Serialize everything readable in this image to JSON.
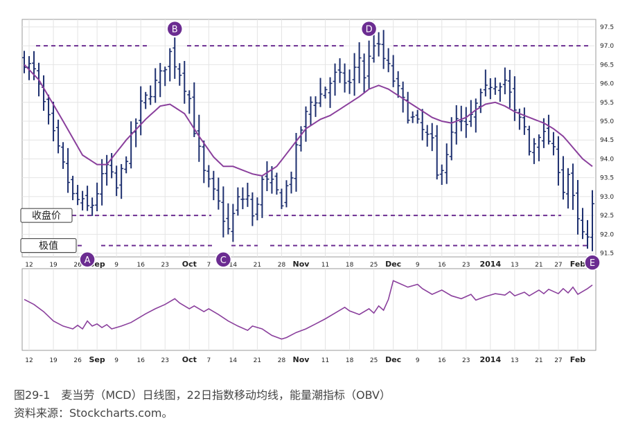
{
  "caption": {
    "line1": "图29-1　麦当劳（MCD）日线图，22日指数移动均线，能量潮指标（OBV）",
    "line2": "资料来源：Stockcharts.com。"
  },
  "colors": {
    "bars": "#1c2e6e",
    "ema": "#8a3f9c",
    "dashed": "#6b2c91",
    "marker": "#6b2c91",
    "obv": "#8a3f9c",
    "grid": "#e4e4e4"
  },
  "chart_data": {
    "type": "ohlc_bar_with_indicator",
    "price_axis": {
      "ylim": [
        91.4,
        97.7
      ],
      "ticks": [
        "91.5",
        "92.0",
        "92.5",
        "93.0",
        "93.5",
        "94.0",
        "94.5",
        "95.0",
        "95.5",
        "96.0",
        "96.5",
        "97.0",
        "97.5"
      ]
    },
    "x_tick_labels": [
      {
        "label": "12",
        "idx": 1,
        "bold": false
      },
      {
        "label": "19",
        "idx": 6,
        "bold": false
      },
      {
        "label": "26",
        "idx": 11,
        "bold": false
      },
      {
        "label": "Sep",
        "idx": 15,
        "bold": true
      },
      {
        "label": "9",
        "idx": 19,
        "bold": false
      },
      {
        "label": "16",
        "idx": 24,
        "bold": false
      },
      {
        "label": "23",
        "idx": 29,
        "bold": false
      },
      {
        "label": "Oct",
        "idx": 34,
        "bold": true
      },
      {
        "label": "7",
        "idx": 38,
        "bold": false
      },
      {
        "label": "14",
        "idx": 43,
        "bold": false
      },
      {
        "label": "21",
        "idx": 48,
        "bold": false
      },
      {
        "label": "28",
        "idx": 53,
        "bold": false
      },
      {
        "label": "Nov",
        "idx": 57,
        "bold": true
      },
      {
        "label": "11",
        "idx": 62,
        "bold": false
      },
      {
        "label": "18",
        "idx": 67,
        "bold": false
      },
      {
        "label": "25",
        "idx": 72,
        "bold": false
      },
      {
        "label": "Dec",
        "idx": 76,
        "bold": true
      },
      {
        "label": "9",
        "idx": 81,
        "bold": false
      },
      {
        "label": "16",
        "idx": 86,
        "bold": false
      },
      {
        "label": "23",
        "idx": 91,
        "bold": false
      },
      {
        "label": "2014",
        "idx": 96,
        "bold": true
      },
      {
        "label": "13",
        "idx": 101,
        "bold": false
      },
      {
        "label": "21",
        "idx": 106,
        "bold": false
      },
      {
        "label": "27",
        "idx": 110,
        "bold": false
      },
      {
        "label": "Feb",
        "idx": 114,
        "bold": true
      }
    ],
    "close_anchors": [
      [
        0,
        96.6
      ],
      [
        2,
        96.3
      ],
      [
        6,
        94.6
      ],
      [
        10,
        93.0
      ],
      [
        13,
        92.7
      ],
      [
        14,
        92.8
      ],
      [
        17,
        93.8
      ],
      [
        19,
        93.2
      ],
      [
        24,
        95.4
      ],
      [
        28,
        96.2
      ],
      [
        30,
        96.8
      ],
      [
        32,
        96.3
      ],
      [
        34,
        95.6
      ],
      [
        35,
        94.8
      ],
      [
        37,
        93.6
      ],
      [
        40,
        92.8
      ],
      [
        42,
        92.1
      ],
      [
        44,
        92.9
      ],
      [
        46,
        93.0
      ],
      [
        47,
        92.4
      ],
      [
        49,
        93.4
      ],
      [
        51,
        93.3
      ],
      [
        53,
        92.9
      ],
      [
        55,
        93.6
      ],
      [
        57,
        94.8
      ],
      [
        59,
        95.5
      ],
      [
        61,
        95.7
      ],
      [
        64,
        96.2
      ],
      [
        67,
        96.0
      ],
      [
        69,
        96.7
      ],
      [
        70,
        96.2
      ],
      [
        72,
        97.1
      ],
      [
        73,
        96.9
      ],
      [
        75,
        96.4
      ],
      [
        77,
        95.8
      ],
      [
        79,
        95.2
      ],
      [
        81,
        94.9
      ],
      [
        84,
        94.4
      ],
      [
        85,
        93.5
      ],
      [
        87,
        94.2
      ],
      [
        89,
        95.0
      ],
      [
        91,
        94.8
      ],
      [
        93,
        95.4
      ],
      [
        96,
        96.0
      ],
      [
        99,
        96.1
      ],
      [
        100,
        95.7
      ],
      [
        101,
        95.2
      ],
      [
        103,
        94.8
      ],
      [
        104,
        94.2
      ],
      [
        106,
        94.7
      ],
      [
        108,
        94.5
      ],
      [
        110,
        93.8
      ],
      [
        111,
        93.2
      ],
      [
        112,
        93.6
      ],
      [
        113,
        92.9
      ],
      [
        114,
        92.3
      ],
      [
        115,
        92.0
      ],
      [
        116,
        91.8
      ],
      [
        117,
        92.7
      ]
    ],
    "ema_anchors": [
      [
        0,
        96.5
      ],
      [
        3,
        96.1
      ],
      [
        8,
        95.0
      ],
      [
        12,
        94.1
      ],
      [
        15,
        93.85
      ],
      [
        17,
        93.85
      ],
      [
        21,
        94.5
      ],
      [
        25,
        95.05
      ],
      [
        28,
        95.4
      ],
      [
        30,
        95.45
      ],
      [
        33,
        95.2
      ],
      [
        36,
        94.6
      ],
      [
        39,
        94.05
      ],
      [
        41,
        93.8
      ],
      [
        43,
        93.8
      ],
      [
        45,
        93.7
      ],
      [
        47,
        93.6
      ],
      [
        49,
        93.55
      ],
      [
        52,
        93.8
      ],
      [
        55,
        94.3
      ],
      [
        58,
        94.8
      ],
      [
        61,
        95.05
      ],
      [
        63,
        95.15
      ],
      [
        66,
        95.4
      ],
      [
        69,
        95.65
      ],
      [
        71,
        95.85
      ],
      [
        73,
        95.95
      ],
      [
        75,
        95.85
      ],
      [
        78,
        95.6
      ],
      [
        81,
        95.35
      ],
      [
        84,
        95.1
      ],
      [
        86,
        95.0
      ],
      [
        88,
        94.95
      ],
      [
        91,
        95.1
      ],
      [
        93,
        95.3
      ],
      [
        95,
        95.45
      ],
      [
        97,
        95.5
      ],
      [
        99,
        95.4
      ],
      [
        101,
        95.25
      ],
      [
        103,
        95.15
      ],
      [
        105,
        95.05
      ],
      [
        107,
        94.95
      ],
      [
        109,
        94.8
      ],
      [
        111,
        94.6
      ],
      [
        113,
        94.3
      ],
      [
        115,
        94.0
      ],
      [
        117,
        93.8
      ]
    ],
    "levels": [
      {
        "name": "extreme_high",
        "value": 97.0
      },
      {
        "name": "close_level",
        "value": 92.5
      },
      {
        "name": "extreme_low",
        "value": 91.7
      }
    ],
    "markers": [
      {
        "label": "A",
        "idx": 13,
        "price": 91.33
      },
      {
        "label": "B",
        "idx": 31,
        "price": 97.45
      },
      {
        "label": "C",
        "idx": 41,
        "price": 91.33
      },
      {
        "label": "D",
        "idx": 71,
        "price": 97.45
      },
      {
        "label": "E",
        "idx": 117,
        "price": 91.25
      }
    ],
    "boxes": [
      {
        "label": "收盘价",
        "value": 92.5
      },
      {
        "label": "极值",
        "value": 91.7
      }
    ],
    "obv": {
      "range": [
        0,
        100
      ],
      "anchors": [
        [
          0,
          65
        ],
        [
          2,
          58
        ],
        [
          4,
          48
        ],
        [
          6,
          35
        ],
        [
          8,
          28
        ],
        [
          10,
          24
        ],
        [
          11,
          29
        ],
        [
          12,
          24
        ],
        [
          13,
          35
        ],
        [
          14,
          28
        ],
        [
          15,
          31
        ],
        [
          16,
          26
        ],
        [
          17,
          30
        ],
        [
          18,
          24
        ],
        [
          20,
          28
        ],
        [
          22,
          33
        ],
        [
          25,
          45
        ],
        [
          27,
          52
        ],
        [
          29,
          58
        ],
        [
          31,
          66
        ],
        [
          32,
          60
        ],
        [
          34,
          52
        ],
        [
          35,
          56
        ],
        [
          37,
          48
        ],
        [
          38,
          52
        ],
        [
          40,
          44
        ],
        [
          42,
          35
        ],
        [
          44,
          28
        ],
        [
          46,
          22
        ],
        [
          47,
          28
        ],
        [
          49,
          24
        ],
        [
          51,
          15
        ],
        [
          53,
          10
        ],
        [
          54,
          12
        ],
        [
          56,
          19
        ],
        [
          58,
          24
        ],
        [
          60,
          31
        ],
        [
          62,
          38
        ],
        [
          64,
          46
        ],
        [
          66,
          54
        ],
        [
          67,
          49
        ],
        [
          69,
          44
        ],
        [
          71,
          52
        ],
        [
          72,
          46
        ],
        [
          73,
          56
        ],
        [
          74,
          50
        ],
        [
          75,
          65
        ],
        [
          76,
          91
        ],
        [
          77,
          88
        ],
        [
          79,
          82
        ],
        [
          81,
          86
        ],
        [
          82,
          80
        ],
        [
          84,
          72
        ],
        [
          86,
          78
        ],
        [
          88,
          70
        ],
        [
          90,
          66
        ],
        [
          92,
          72
        ],
        [
          93,
          64
        ],
        [
          95,
          69
        ],
        [
          97,
          73
        ],
        [
          99,
          71
        ],
        [
          100,
          76
        ],
        [
          101,
          70
        ],
        [
          103,
          75
        ],
        [
          104,
          70
        ],
        [
          106,
          78
        ],
        [
          107,
          73
        ],
        [
          108,
          79
        ],
        [
          110,
          73
        ],
        [
          111,
          80
        ],
        [
          112,
          74
        ],
        [
          113,
          82
        ],
        [
          114,
          72
        ],
        [
          116,
          80
        ],
        [
          117,
          85
        ]
      ]
    }
  }
}
